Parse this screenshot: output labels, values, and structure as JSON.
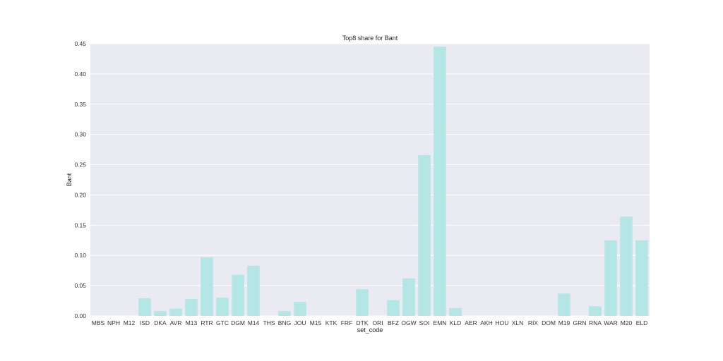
{
  "chart_data": {
    "type": "bar",
    "title": "Top8 share for Bant",
    "xlabel": "set_code",
    "ylabel": "Bant",
    "ylim": [
      0,
      0.45
    ],
    "yticks": [
      "0.00",
      "0.05",
      "0.10",
      "0.15",
      "0.20",
      "0.25",
      "0.30",
      "0.35",
      "0.40",
      "0.45"
    ],
    "grid": true,
    "colors": {
      "bar": "#b4e6e6",
      "plot_bg": "#eaeaf2",
      "grid": "#ffffff"
    },
    "categories": [
      "MBS",
      "NPH",
      "M12",
      "ISD",
      "DKA",
      "AVR",
      "M13",
      "RTR",
      "GTC",
      "DGM",
      "M14",
      "THS",
      "BNG",
      "JOU",
      "M15",
      "KTK",
      "FRF",
      "DTK",
      "ORI",
      "BFZ",
      "OGW",
      "SOI",
      "EMN",
      "KLD",
      "AER",
      "AKH",
      "HOU",
      "XLN",
      "RIX",
      "DOM",
      "M19",
      "GRN",
      "RNA",
      "WAR",
      "M20",
      "ELD"
    ],
    "values": [
      0,
      0,
      0,
      0.029,
      0.008,
      0.012,
      0.028,
      0.097,
      0.03,
      0.068,
      0.083,
      0,
      0.008,
      0.023,
      0,
      0,
      0,
      0.044,
      0,
      0.026,
      0.062,
      0.266,
      0.445,
      0.013,
      0,
      0,
      0,
      0,
      0,
      0,
      0.037,
      0,
      0.016,
      0.125,
      0.164,
      0.125
    ]
  }
}
